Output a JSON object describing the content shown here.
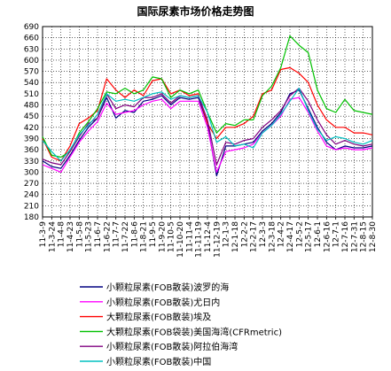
{
  "chart_data": {
    "type": "line",
    "title": "国际尿素市场价格走势图",
    "xlabel": "",
    "ylabel": "",
    "ylim": [
      180,
      690
    ],
    "yticks": [
      180,
      210,
      240,
      270,
      300,
      330,
      360,
      390,
      420,
      450,
      480,
      510,
      540,
      570,
      600,
      630,
      660,
      690
    ],
    "x": [
      "11-3-9",
      "11-3-24",
      "11-4-8",
      "11-4-23",
      "11-5-8",
      "11-5-23",
      "11-6-7",
      "11-6-22",
      "11-7-7",
      "11-7-22",
      "11-8-6",
      "11-8-21",
      "11-9-5",
      "11-9-20",
      "11-10-5",
      "11-10-20",
      "11-11-4",
      "11-11-19",
      "11-12-4",
      "11-12-19",
      "12-1-3",
      "12-1-18",
      "12-2-2",
      "12-2-17",
      "12-3-3",
      "12-3-18",
      "12-4-2",
      "12-4-17",
      "12-5-2",
      "12-5-17",
      "12-6-1",
      "12-6-16",
      "12-7-1",
      "12-7-16",
      "12-7-31",
      "12-8-15",
      "12-8-30"
    ],
    "grid": true,
    "legend_position": "bottom",
    "series": [
      {
        "name": "小颗粒尿素(FOB散装)波罗的海",
        "color": "#000080",
        "values": [
          330,
          315,
          310,
          345,
          385,
          420,
          445,
          500,
          445,
          465,
          460,
          490,
          495,
          505,
          480,
          500,
          495,
          500,
          430,
          290,
          370,
          370,
          375,
          380,
          410,
          430,
          460,
          510,
          520,
          470,
          420,
          380,
          360,
          370,
          365,
          365,
          370
        ]
      },
      {
        "name": "小颗粒尿素(FOB散装)尤日内",
        "color": "#ff00ff",
        "values": [
          320,
          310,
          300,
          340,
          380,
          410,
          435,
          485,
          455,
          460,
          465,
          480,
          490,
          495,
          470,
          490,
          490,
          490,
          420,
          300,
          355,
          360,
          365,
          375,
          405,
          425,
          450,
          495,
          500,
          460,
          410,
          370,
          360,
          365,
          360,
          360,
          365
        ]
      },
      {
        "name": "大颗粒尿素(FOB散装)埃及",
        "color": "#ff0000",
        "values": [
          390,
          340,
          330,
          370,
          430,
          445,
          465,
          550,
          520,
          500,
          520,
          505,
          545,
          550,
          510,
          520,
          505,
          510,
          430,
          390,
          420,
          420,
          430,
          450,
          510,
          520,
          575,
          580,
          565,
          540,
          480,
          440,
          420,
          420,
          405,
          405,
          400
        ]
      },
      {
        "name": "大颗粒尿素(FOB袋装)美国海湾(CFRmetric)",
        "color": "#00c000",
        "values": [
          395,
          345,
          340,
          355,
          405,
          435,
          470,
          515,
          510,
          525,
          510,
          520,
          555,
          550,
          500,
          520,
          510,
          520,
          460,
          405,
          430,
          425,
          440,
          440,
          505,
          530,
          580,
          665,
          640,
          620,
          520,
          470,
          460,
          495,
          465,
          460,
          455
        ]
      },
      {
        "name": "小颗粒尿素(FOB散装)阿拉伯海湾",
        "color": "#800080",
        "values": [
          335,
          325,
          320,
          355,
          395,
          430,
          445,
          510,
          470,
          480,
          475,
          500,
          500,
          510,
          485,
          505,
          500,
          505,
          440,
          320,
          380,
          375,
          385,
          390,
          420,
          440,
          465,
          505,
          525,
          490,
          440,
          400,
          375,
          385,
          375,
          370,
          375
        ]
      },
      {
        "name": "小颗粒尿素(FOB散装)中国",
        "color": "#00c0c0",
        "values": [
          385,
          355,
          330,
          360,
          400,
          425,
          455,
          510,
          490,
          495,
          490,
          500,
          510,
          515,
          495,
          505,
          500,
          505,
          460,
          380,
          395,
          370,
          375,
          365,
          405,
          425,
          455,
          490,
          525,
          465,
          415,
          385,
          395,
          390,
          380,
          375,
          385
        ]
      }
    ]
  }
}
